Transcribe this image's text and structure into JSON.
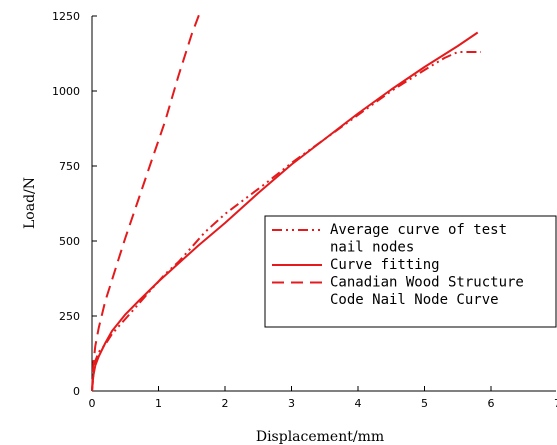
{
  "chart_data": {
    "type": "line",
    "xlabel": "Displacement/mm",
    "ylabel": "Load/N",
    "xlim": [
      0,
      7
    ],
    "ylim": [
      0,
      1250
    ],
    "x_ticks": [
      0,
      1,
      2,
      3,
      4,
      5,
      6,
      7
    ],
    "x_tick_labels": [
      "0",
      "1",
      "2",
      "3",
      "4",
      "5",
      "6",
      "7"
    ],
    "y_ticks": [
      0,
      250,
      500,
      750,
      1000,
      1250
    ],
    "y_tick_labels": [
      "0",
      "250",
      "500",
      "750",
      "1000",
      "1250"
    ],
    "grid": false,
    "legend_position": "lower-right",
    "series": [
      {
        "name": "Average curve of test nail nodes",
        "legend_lines": [
          "Average curve of test",
          "nail nodes"
        ],
        "style": "dash-dot-dot",
        "color": "#e41a1c",
        "x": [
          0,
          0.02,
          0.05,
          0.1,
          0.2,
          0.3,
          0.4,
          0.5,
          0.7,
          0.9,
          1.1,
          1.3,
          1.5,
          1.7,
          2.0,
          2.3,
          2.6,
          3.0,
          3.5,
          4.0,
          4.5,
          5.0,
          5.3,
          5.5,
          5.7,
          5.85
        ],
        "y": [
          0,
          50,
          100,
          130,
          155,
          190,
          215,
          240,
          290,
          340,
          390,
          430,
          480,
          530,
          590,
          640,
          690,
          760,
          840,
          920,
          1000,
          1070,
          1110,
          1130,
          1130,
          1130
        ]
      },
      {
        "name": "Curve fitting",
        "legend_lines": [
          "Curve fitting"
        ],
        "style": "solid",
        "color": "#e41a1c",
        "x": [
          0,
          0.02,
          0.05,
          0.1,
          0.2,
          0.3,
          0.5,
          0.7,
          1.0,
          1.3,
          1.6,
          2.0,
          2.5,
          3.0,
          3.5,
          4.0,
          4.5,
          5.0,
          5.5,
          5.8
        ],
        "y": [
          0,
          50,
          85,
          115,
          160,
          200,
          255,
          300,
          365,
          425,
          485,
          560,
          660,
          755,
          840,
          925,
          1005,
          1080,
          1150,
          1195
        ]
      },
      {
        "name": "Canadian Wood Structure Code Nail Node Curve",
        "legend_lines": [
          "Canadian Wood Structure",
          "Code Nail Node Curve"
        ],
        "style": "dashed",
        "color": "#e41a1c",
        "x": [
          0,
          0.02,
          0.05,
          0.1,
          0.2,
          0.3,
          0.4,
          0.5,
          0.7,
          0.9,
          1.1,
          1.3,
          1.5,
          1.62
        ],
        "y": [
          0,
          90,
          150,
          210,
          300,
          370,
          440,
          510,
          640,
          770,
          900,
          1050,
          1190,
          1260
        ]
      }
    ]
  }
}
